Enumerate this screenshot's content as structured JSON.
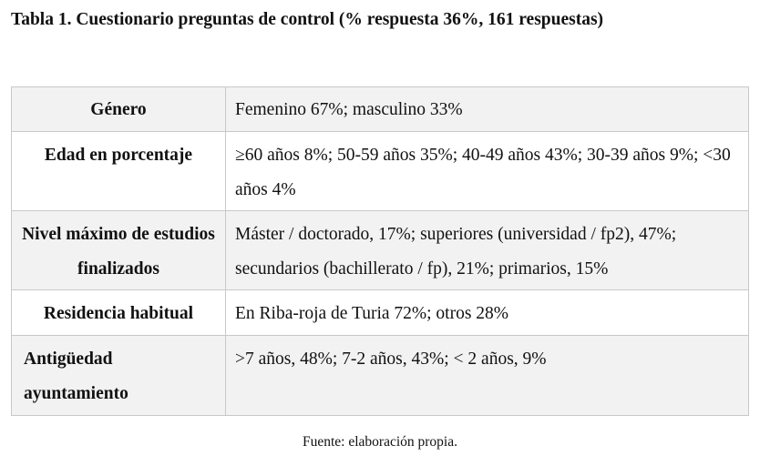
{
  "title": "Tabla 1. Cuestionario preguntas de control (% respuesta 36%, 161 respuestas)",
  "rows": [
    {
      "label": "Género",
      "value": "Femenino 67%; masculino 33%"
    },
    {
      "label": "Edad en porcentaje",
      "value": "≥60 años 8%; 50-59 años 35%; 40-49 años 43%; 30-39 años 9%; <30 años 4%"
    },
    {
      "label": "Nivel máximo de estudios finalizados",
      "value": "Máster / doctorado, 17%; superiores (universidad / fp2), 47%; secundarios (bachillerato / fp), 21%; primarios, 15%"
    },
    {
      "label": "Residencia habitual",
      "value": "En Riba-roja de Turia 72%; otros 28%"
    },
    {
      "label": "Antigüedad ayuntamiento",
      "value": ">7 años, 48%; 7-2 años, 43%; < 2 años, 9%"
    }
  ],
  "source": "Fuente: elaboración propia."
}
